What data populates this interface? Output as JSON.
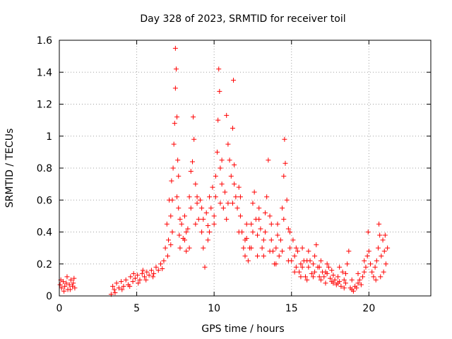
{
  "chart_data": {
    "type": "scatter",
    "title": "Day 328 of 2023, SRMTID for receiver toil",
    "xlabel": "GPS time / hours",
    "ylabel": "SRMTID / TECUs",
    "xlim": [
      0,
      24
    ],
    "ylim": [
      0,
      1.6
    ],
    "grid": true,
    "marker": "+",
    "xticks": [
      0,
      5,
      10,
      15,
      20
    ],
    "xtick_labels": [
      "0",
      "5",
      "10",
      "15",
      "20"
    ],
    "yticks": [
      0,
      0.2,
      0.4,
      0.6,
      0.8,
      1.0,
      1.2,
      1.4,
      1.6
    ],
    "ytick_labels": [
      "0",
      "0.2",
      "0.4",
      "0.6",
      "0.8",
      "1",
      "1.2",
      "1.4",
      "1.6"
    ],
    "series": [
      {
        "name": "SRMTID",
        "color": "#ff0000",
        "points": [
          [
            0.05,
            0.07
          ],
          [
            0.15,
            0.05
          ],
          [
            0.25,
            0.09
          ],
          [
            0.35,
            0.06
          ],
          [
            0.45,
            0.08
          ],
          [
            0.55,
            0.04
          ],
          [
            0.65,
            0.07
          ],
          [
            0.75,
            0.1
          ],
          [
            0.85,
            0.06
          ],
          [
            0.95,
            0.11
          ],
          [
            1.0,
            0.05
          ],
          [
            0.1,
            0.1
          ],
          [
            0.3,
            0.03
          ],
          [
            0.5,
            0.12
          ],
          [
            0.7,
            0.04
          ],
          [
            0.9,
            0.08
          ],
          [
            3.35,
            0.01
          ],
          [
            3.45,
            0.06
          ],
          [
            3.55,
            0.04
          ],
          [
            3.7,
            0.08
          ],
          [
            3.85,
            0.05
          ],
          [
            4.0,
            0.09
          ],
          [
            4.15,
            0.06
          ],
          [
            4.3,
            0.1
          ],
          [
            4.45,
            0.07
          ],
          [
            4.6,
            0.12
          ],
          [
            4.75,
            0.09
          ],
          [
            4.9,
            0.11
          ],
          [
            5.05,
            0.13
          ],
          [
            5.2,
            0.1
          ],
          [
            5.35,
            0.14
          ],
          [
            5.5,
            0.12
          ],
          [
            5.65,
            0.15
          ],
          [
            5.8,
            0.13
          ],
          [
            5.95,
            0.16
          ],
          [
            6.1,
            0.14
          ],
          [
            6.25,
            0.18
          ],
          [
            6.4,
            0.16
          ],
          [
            6.55,
            0.2
          ],
          [
            6.65,
            0.17
          ],
          [
            3.6,
            0.02
          ],
          [
            4.05,
            0.04
          ],
          [
            4.55,
            0.06
          ],
          [
            5.1,
            0.08
          ],
          [
            5.6,
            0.1
          ],
          [
            6.05,
            0.12
          ],
          [
            4.8,
            0.14
          ],
          [
            5.4,
            0.16
          ],
          [
            6.75,
            0.22
          ],
          [
            6.85,
            0.3
          ],
          [
            6.95,
            0.45
          ],
          [
            7.05,
            0.35
          ],
          [
            7.1,
            0.6
          ],
          [
            7.2,
            0.5
          ],
          [
            7.25,
            0.72
          ],
          [
            7.3,
            0.4
          ],
          [
            7.35,
            0.8
          ],
          [
            7.4,
            0.95
          ],
          [
            7.45,
            1.08
          ],
          [
            7.5,
            1.3
          ],
          [
            7.5,
            1.55
          ],
          [
            7.55,
            1.42
          ],
          [
            7.6,
            1.12
          ],
          [
            7.65,
            0.85
          ],
          [
            7.7,
            0.55
          ],
          [
            7.75,
            0.38
          ],
          [
            7.8,
            0.3
          ],
          [
            7.9,
            0.45
          ],
          [
            8.0,
            0.36
          ],
          [
            8.1,
            0.5
          ],
          [
            8.2,
            0.28
          ],
          [
            8.3,
            0.42
          ],
          [
            8.4,
            0.62
          ],
          [
            8.5,
            0.55
          ],
          [
            8.6,
            0.84
          ],
          [
            8.65,
            1.12
          ],
          [
            8.7,
            0.98
          ],
          [
            8.8,
            0.7
          ],
          [
            8.9,
            0.58
          ],
          [
            9.0,
            0.48
          ],
          [
            9.1,
            0.6
          ],
          [
            9.2,
            0.4
          ],
          [
            9.3,
            0.3
          ],
          [
            9.4,
            0.18
          ],
          [
            9.5,
            0.52
          ],
          [
            9.6,
            0.44
          ],
          [
            9.7,
            0.62
          ],
          [
            9.8,
            0.55
          ],
          [
            9.9,
            0.68
          ],
          [
            10.0,
            0.5
          ],
          [
            10.1,
            0.62
          ],
          [
            10.2,
            0.9
          ],
          [
            10.25,
            1.1
          ],
          [
            10.3,
            1.42
          ],
          [
            10.35,
            1.28
          ],
          [
            10.4,
            0.8
          ],
          [
            10.5,
            0.7
          ],
          [
            10.6,
            0.55
          ],
          [
            10.7,
            0.65
          ],
          [
            10.8,
            1.13
          ],
          [
            10.9,
            0.95
          ],
          [
            11.0,
            0.85
          ],
          [
            11.1,
            0.75
          ],
          [
            11.2,
            1.05
          ],
          [
            11.25,
            1.35
          ],
          [
            11.3,
            0.7
          ],
          [
            11.4,
            0.62
          ],
          [
            11.5,
            0.55
          ],
          [
            11.6,
            0.68
          ],
          [
            11.7,
            0.5
          ],
          [
            11.8,
            0.4
          ],
          [
            11.9,
            0.3
          ],
          [
            12.0,
            0.25
          ],
          [
            12.1,
            0.36
          ],
          [
            12.2,
            0.22
          ],
          [
            12.3,
            0.3
          ],
          [
            12.4,
            0.45
          ],
          [
            12.5,
            0.58
          ],
          [
            12.6,
            0.65
          ],
          [
            12.7,
            0.48
          ],
          [
            12.8,
            0.38
          ],
          [
            12.9,
            0.55
          ],
          [
            13.0,
            0.42
          ],
          [
            13.1,
            0.3
          ],
          [
            13.2,
            0.25
          ],
          [
            13.3,
            0.4
          ],
          [
            13.4,
            0.62
          ],
          [
            13.5,
            0.85
          ],
          [
            13.6,
            0.5
          ],
          [
            13.7,
            0.35
          ],
          [
            13.8,
            0.28
          ],
          [
            13.9,
            0.2
          ],
          [
            14.0,
            0.3
          ],
          [
            14.1,
            0.45
          ],
          [
            14.2,
            0.25
          ],
          [
            14.3,
            0.35
          ],
          [
            14.4,
            0.55
          ],
          [
            14.5,
            0.75
          ],
          [
            14.55,
            0.98
          ],
          [
            14.6,
            0.83
          ],
          [
            14.7,
            0.6
          ],
          [
            14.8,
            0.42
          ],
          [
            14.9,
            0.3
          ],
          [
            15.0,
            0.22
          ],
          [
            15.1,
            0.35
          ],
          [
            15.2,
            0.25
          ],
          [
            15.3,
            0.18
          ],
          [
            15.4,
            0.28
          ],
          [
            15.5,
            0.15
          ],
          [
            15.6,
            0.2
          ],
          [
            15.7,
            0.3
          ],
          [
            15.8,
            0.22
          ],
          [
            15.9,
            0.12
          ],
          [
            16.0,
            0.1
          ],
          [
            16.1,
            0.18
          ],
          [
            16.2,
            0.22
          ],
          [
            16.3,
            0.14
          ],
          [
            16.4,
            0.2
          ],
          [
            16.5,
            0.25
          ],
          [
            16.6,
            0.32
          ],
          [
            16.7,
            0.18
          ],
          [
            16.8,
            0.12
          ],
          [
            16.9,
            0.1
          ],
          [
            17.0,
            0.15
          ],
          [
            17.1,
            0.12
          ],
          [
            17.2,
            0.08
          ],
          [
            17.3,
            0.14
          ],
          [
            17.4,
            0.18
          ],
          [
            17.5,
            0.11
          ],
          [
            17.6,
            0.09
          ],
          [
            17.7,
            0.13
          ],
          [
            17.8,
            0.1
          ],
          [
            17.9,
            0.07
          ],
          [
            18.0,
            0.12
          ],
          [
            18.1,
            0.09
          ],
          [
            18.2,
            0.06
          ],
          [
            18.3,
            0.15
          ],
          [
            18.4,
            0.1
          ],
          [
            18.5,
            0.08
          ],
          [
            18.6,
            0.2
          ],
          [
            18.7,
            0.28
          ],
          [
            18.8,
            0.05
          ],
          [
            18.9,
            0.04
          ],
          [
            19.0,
            0.03
          ],
          [
            19.1,
            0.06
          ],
          [
            19.2,
            0.05
          ],
          [
            19.3,
            0.08
          ],
          [
            19.4,
            0.1
          ],
          [
            19.5,
            0.07
          ],
          [
            19.6,
            0.12
          ],
          [
            19.7,
            0.15
          ],
          [
            19.8,
            0.18
          ],
          [
            19.9,
            0.25
          ],
          [
            19.95,
            0.4
          ],
          [
            20.0,
            0.28
          ],
          [
            20.1,
            0.2
          ],
          [
            20.2,
            0.15
          ],
          [
            20.3,
            0.12
          ],
          [
            20.4,
            0.18
          ],
          [
            20.5,
            0.22
          ],
          [
            20.6,
            0.3
          ],
          [
            20.65,
            0.45
          ],
          [
            20.7,
            0.38
          ],
          [
            20.8,
            0.25
          ],
          [
            20.9,
            0.35
          ],
          [
            21.0,
            0.28
          ],
          [
            21.1,
            0.2
          ],
          [
            21.2,
            0.3
          ],
          [
            20.45,
            0.1
          ],
          [
            20.75,
            0.12
          ],
          [
            20.95,
            0.15
          ],
          [
            21.05,
            0.38
          ],
          [
            7.0,
            0.25
          ],
          [
            7.2,
            0.32
          ],
          [
            7.6,
            0.62
          ],
          [
            7.8,
            0.48
          ],
          [
            8.2,
            0.4
          ],
          [
            8.4,
            0.3
          ],
          [
            8.8,
            0.45
          ],
          [
            9.2,
            0.55
          ],
          [
            9.6,
            0.35
          ],
          [
            10.0,
            0.45
          ],
          [
            10.4,
            0.58
          ],
          [
            10.8,
            0.48
          ],
          [
            11.2,
            0.58
          ],
          [
            11.6,
            0.4
          ],
          [
            12.0,
            0.35
          ],
          [
            12.4,
            0.3
          ],
          [
            12.8,
            0.25
          ],
          [
            13.2,
            0.35
          ],
          [
            13.6,
            0.28
          ],
          [
            14.0,
            0.2
          ],
          [
            14.4,
            0.28
          ],
          [
            14.8,
            0.22
          ],
          [
            15.2,
            0.15
          ],
          [
            15.6,
            0.12
          ],
          [
            16.0,
            0.22
          ],
          [
            16.4,
            0.12
          ],
          [
            16.8,
            0.18
          ],
          [
            17.2,
            0.15
          ],
          [
            17.6,
            0.16
          ],
          [
            18.0,
            0.08
          ],
          [
            18.4,
            0.05
          ],
          [
            7.3,
            0.6
          ],
          [
            7.7,
            0.75
          ],
          [
            8.1,
            0.35
          ],
          [
            8.5,
            0.78
          ],
          [
            8.9,
            0.62
          ],
          [
            9.3,
            0.48
          ],
          [
            9.7,
            0.4
          ],
          [
            10.1,
            0.75
          ],
          [
            10.5,
            0.85
          ],
          [
            10.9,
            0.58
          ],
          [
            11.3,
            0.82
          ],
          [
            11.7,
            0.62
          ],
          [
            12.1,
            0.45
          ],
          [
            12.5,
            0.4
          ],
          [
            12.9,
            0.48
          ],
          [
            13.3,
            0.52
          ],
          [
            13.7,
            0.45
          ],
          [
            14.1,
            0.38
          ],
          [
            14.5,
            0.48
          ],
          [
            14.9,
            0.4
          ],
          [
            15.3,
            0.3
          ],
          [
            15.7,
            0.18
          ],
          [
            16.1,
            0.28
          ],
          [
            16.5,
            0.15
          ],
          [
            16.9,
            0.22
          ],
          [
            17.3,
            0.2
          ],
          [
            17.7,
            0.08
          ],
          [
            18.1,
            0.18
          ],
          [
            18.5,
            0.14
          ],
          [
            18.9,
            0.1
          ],
          [
            19.3,
            0.14
          ],
          [
            19.7,
            0.22
          ]
        ]
      }
    ]
  }
}
